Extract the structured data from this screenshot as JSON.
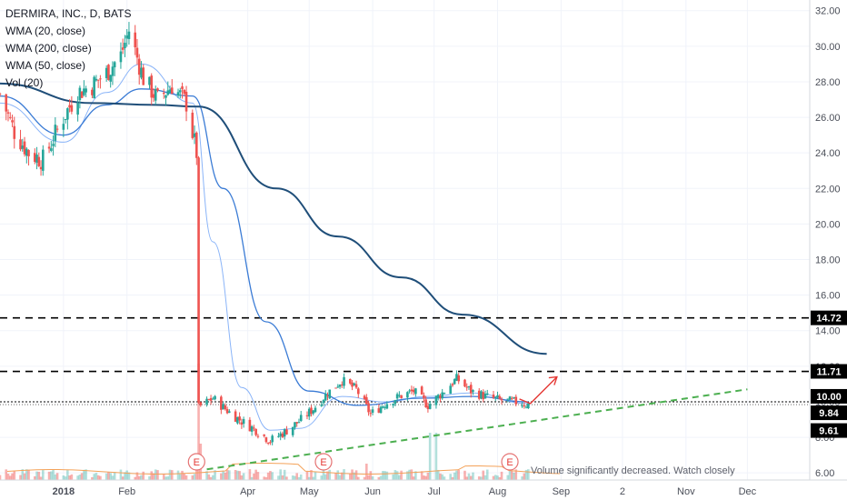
{
  "legend": {
    "title": "DERMIRA, INC., D, BATS",
    "wma20": "WMA (20, close)",
    "wma200": "WMA (200, close)",
    "wma50": "WMA (50, close)",
    "vol": "Vol (20)"
  },
  "annotation": {
    "volume_note": "Volume significantly decreased. Watch closely",
    "earnings_marker": "E"
  },
  "colors": {
    "up": "#26a69a",
    "down": "#ef5350",
    "wma200": "#1f4e79",
    "wma50": "#3a7bd5",
    "wma20": "#8ab4f8",
    "trend": "#4caf50",
    "arrow": "#e53935"
  },
  "chart_data": {
    "type": "candlestick",
    "title": "DERMIRA, INC., D, BATS",
    "y_axis": {
      "ticks": [
        "32.00",
        "30.00",
        "28.00",
        "26.00",
        "24.00",
        "22.00",
        "20.00",
        "18.00",
        "16.00",
        "14.00",
        "12.00",
        "10.00",
        "8.00",
        "6.00"
      ],
      "range": [
        5.6,
        32.6
      ],
      "position": "right"
    },
    "x_axis": {
      "ticks": [
        "2018",
        "Feb",
        "Apr",
        "May",
        "Jun",
        "Jul",
        "Aug",
        "Sep",
        "2",
        "Nov",
        "Dec"
      ],
      "range": [
        "2017-12-01",
        "2018-12-31"
      ]
    },
    "price_labels": [
      "14.72",
      "11.71",
      "10.00",
      "9.84",
      "9.61"
    ],
    "horizontal_levels": [
      14.72,
      11.71,
      10.0
    ],
    "ohlc_anchor_closes": [
      [
        "2017-12-01",
        27.3
      ],
      [
        "2017-12-08",
        25.2
      ],
      [
        "2017-12-15",
        24.0
      ],
      [
        "2017-12-22",
        23.6
      ],
      [
        "2018-01-01",
        26.0
      ],
      [
        "2018-01-08",
        27.4
      ],
      [
        "2018-01-15",
        27.8
      ],
      [
        "2018-01-22",
        28.5
      ],
      [
        "2018-01-29",
        29.5
      ],
      [
        "2018-02-02",
        30.9
      ],
      [
        "2018-02-09",
        28.2
      ],
      [
        "2018-02-16",
        27.0
      ],
      [
        "2018-02-23",
        27.8
      ],
      [
        "2018-03-02",
        26.8
      ],
      [
        "2018-03-07",
        24.0
      ],
      [
        "2018-03-08",
        9.7
      ],
      [
        "2018-03-15",
        10.2
      ],
      [
        "2018-03-22",
        9.5
      ],
      [
        "2018-03-29",
        8.9
      ],
      [
        "2018-04-05",
        8.4
      ],
      [
        "2018-04-12",
        7.8
      ],
      [
        "2018-04-19",
        8.3
      ],
      [
        "2018-04-26",
        8.9
      ],
      [
        "2018-05-03",
        9.6
      ],
      [
        "2018-05-10",
        10.5
      ],
      [
        "2018-05-17",
        11.2
      ],
      [
        "2018-05-24",
        10.7
      ],
      [
        "2018-05-31",
        9.3
      ],
      [
        "2018-06-07",
        9.9
      ],
      [
        "2018-06-14",
        10.3
      ],
      [
        "2018-06-21",
        10.6
      ],
      [
        "2018-06-28",
        9.8
      ],
      [
        "2018-07-05",
        10.5
      ],
      [
        "2018-07-12",
        11.3
      ],
      [
        "2018-07-19",
        10.6
      ],
      [
        "2018-07-26",
        10.3
      ],
      [
        "2018-08-02",
        10.1
      ],
      [
        "2018-08-09",
        10.0
      ],
      [
        "2018-08-16",
        9.84
      ]
    ],
    "wma200_points": [
      [
        "2017-12-01",
        27.9
      ],
      [
        "2018-01-15",
        26.8
      ],
      [
        "2018-02-15",
        26.7
      ],
      [
        "2018-03-08",
        26.6
      ],
      [
        "2018-04-15",
        22.0
      ],
      [
        "2018-05-15",
        19.3
      ],
      [
        "2018-06-15",
        17.0
      ],
      [
        "2018-07-15",
        14.9
      ],
      [
        "2018-08-25",
        12.7
      ]
    ],
    "wma50_points": [
      [
        "2017-12-01",
        27.2
      ],
      [
        "2018-01-01",
        25.0
      ],
      [
        "2018-01-22",
        26.7
      ],
      [
        "2018-02-08",
        27.6
      ],
      [
        "2018-03-05",
        27.2
      ],
      [
        "2018-03-20",
        22.0
      ],
      [
        "2018-04-10",
        14.5
      ],
      [
        "2018-05-01",
        10.6
      ],
      [
        "2018-05-25",
        9.8
      ],
      [
        "2018-06-25",
        10.2
      ],
      [
        "2018-07-20",
        10.3
      ],
      [
        "2018-08-16",
        10.0
      ]
    ],
    "wma20_points": [
      [
        "2017-12-01",
        26.8
      ],
      [
        "2018-01-01",
        24.6
      ],
      [
        "2018-01-22",
        27.4
      ],
      [
        "2018-02-08",
        29.0
      ],
      [
        "2018-03-05",
        26.8
      ],
      [
        "2018-03-15",
        19.0
      ],
      [
        "2018-03-29",
        10.8
      ],
      [
        "2018-04-12",
        8.4
      ],
      [
        "2018-04-26",
        8.5
      ],
      [
        "2018-05-17",
        10.3
      ],
      [
        "2018-06-07",
        10.0
      ],
      [
        "2018-06-28",
        10.3
      ],
      [
        "2018-07-19",
        10.5
      ],
      [
        "2018-08-16",
        9.9
      ]
    ],
    "trendline": [
      [
        "2018-03-12",
        6.2
      ],
      [
        "2018-12-01",
        10.7
      ]
    ],
    "earnings_dates": [
      "2018-03-07",
      "2018-05-08",
      "2018-08-07"
    ]
  }
}
